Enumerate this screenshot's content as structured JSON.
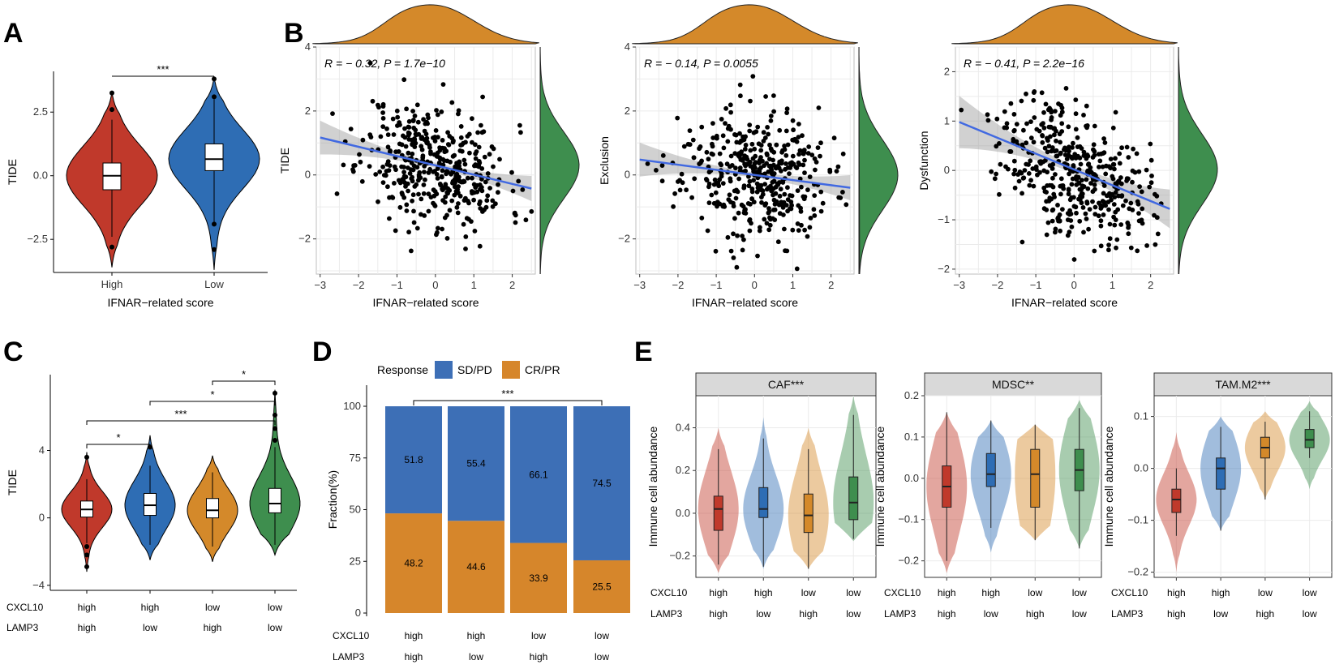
{
  "panel_labels": {
    "A": "A",
    "B": "B",
    "C": "C",
    "D": "D",
    "E": "E"
  },
  "colors": {
    "high": "#C0392B",
    "low": "#2E6DB4",
    "orange": "#D4892A",
    "green": "#3E8E4E",
    "blue_fit": "#4169E1",
    "density_top": "#D4892A",
    "density_right": "#3E8E4E",
    "sdpd": "#3D6FB6",
    "crpr": "#D6862B"
  },
  "chart_data": [
    {
      "id": "A",
      "type": "violin",
      "categories": [
        "High",
        "Low"
      ],
      "ylabel": "TIDE",
      "xlabel": "IFNAR−related score",
      "yticks": [
        -2.5,
        0.0,
        2.5
      ],
      "ytick_labels": [
        "−2.5",
        "0.0",
        "2.5"
      ],
      "ylim": [
        -3.8,
        4.1
      ],
      "groups": [
        {
          "name": "High",
          "median": 0.0,
          "q1": -0.55,
          "q3": 0.5,
          "wlo": -2.4,
          "whi": 2.2,
          "min": -3.6,
          "max": 3.3,
          "outliers": [
            -2.8,
            2.6,
            3.25
          ]
        },
        {
          "name": "Low",
          "median": 0.65,
          "q1": 0.2,
          "q3": 1.25,
          "wlo": -1.9,
          "whi": 3.0,
          "min": -3.7,
          "max": 3.9,
          "outliers": [
            -1.9,
            -2.9,
            3.1,
            3.8
          ]
        }
      ],
      "significance": [
        {
          "from": 0,
          "to": 1,
          "label": "***"
        }
      ]
    },
    {
      "id": "B1",
      "type": "scatter",
      "xlabel": "IFNAR−related score",
      "ylabel": "TIDE",
      "xlim": [
        -3.1,
        2.6
      ],
      "ylim": [
        -3.1,
        4.0
      ],
      "xticks": [
        -3,
        -2,
        -1,
        0,
        1,
        2
      ],
      "xtick_labels": [
        "−3",
        "−2",
        "−1",
        "0",
        "1",
        "2"
      ],
      "yticks": [
        -2,
        0,
        2,
        4
      ],
      "ytick_labels": [
        "−2",
        "0",
        "2",
        "4"
      ],
      "annotation": "R = − 0.32, P = 1.7e−10",
      "fit": {
        "slope": -0.29,
        "intercept": 0.3
      },
      "seed": 11,
      "n": 420,
      "noise": 0.95
    },
    {
      "id": "B2",
      "type": "scatter",
      "xlabel": "IFNAR−related score",
      "ylabel": "Exclusion",
      "xlim": [
        -3.1,
        2.6
      ],
      "ylim": [
        -3.1,
        4.0
      ],
      "xticks": [
        -3,
        -2,
        -1,
        0,
        1,
        2
      ],
      "xtick_labels": [
        "−3",
        "−2",
        "−1",
        "0",
        "1",
        "2"
      ],
      "yticks": [
        -2,
        0,
        2,
        4
      ],
      "ytick_labels": [
        "−2",
        "0",
        "2",
        "4"
      ],
      "annotation": "R = − 0.14, P = 0.0055",
      "fit": {
        "slope": -0.16,
        "intercept": 0.0
      },
      "seed": 23,
      "n": 420,
      "noise": 1.0
    },
    {
      "id": "B3",
      "type": "scatter",
      "xlabel": "IFNAR−related score",
      "ylabel": "Dysfunction",
      "xlim": [
        -3.1,
        2.6
      ],
      "ylim": [
        -2.1,
        2.5
      ],
      "xticks": [
        -3,
        -2,
        -1,
        0,
        1,
        2
      ],
      "xtick_labels": [
        "−3",
        "−2",
        "−1",
        "0",
        "1",
        "2"
      ],
      "yticks": [
        -2,
        -1,
        0,
        1,
        2
      ],
      "ytick_labels": [
        "−2",
        "−1",
        "0",
        "1",
        "2"
      ],
      "annotation": "R = − 0.41, P = 2.2e−16",
      "fit": {
        "slope": -0.32,
        "intercept": 0.02
      },
      "seed": 37,
      "n": 420,
      "noise": 0.65
    },
    {
      "id": "C",
      "type": "violin",
      "ylabel": "TIDE",
      "categories": [
        "high/high",
        "high/low",
        "low/high",
        "low/low"
      ],
      "row_labels": [
        {
          "name": "CXCL10",
          "values": [
            "high",
            "high",
            "low",
            "low"
          ]
        },
        {
          "name": "LAMP3",
          "values": [
            "high",
            "low",
            "high",
            "low"
          ]
        }
      ],
      "yticks": [
        -4,
        0,
        4
      ],
      "ytick_labels": [
        "−4",
        "0",
        "4"
      ],
      "ylim": [
        -4.3,
        8.5
      ],
      "groups": [
        {
          "median": 0.5,
          "q1": 0.05,
          "q3": 1.0,
          "wlo": -1.5,
          "whi": 2.3,
          "min": -3.2,
          "max": 3.9,
          "outliers": [
            -2.2,
            -2.9,
            -1.7,
            3.6
          ],
          "color": "#C0392B"
        },
        {
          "median": 0.75,
          "q1": 0.15,
          "q3": 1.45,
          "wlo": -1.6,
          "whi": 3.1,
          "min": -2.5,
          "max": 4.9,
          "outliers": [
            4.2
          ],
          "color": "#2E6DB4"
        },
        {
          "median": 0.45,
          "q1": 0.0,
          "q3": 1.15,
          "wlo": -1.7,
          "whi": 2.7,
          "min": -2.6,
          "max": 3.7,
          "outliers": [],
          "color": "#D4892A"
        },
        {
          "median": 0.85,
          "q1": 0.3,
          "q3": 1.75,
          "wlo": -1.6,
          "whi": 4.2,
          "min": -2.2,
          "max": 7.6,
          "outliers": [
            4.6,
            5.3,
            6.1,
            7.4
          ],
          "color": "#3E8E4E"
        }
      ],
      "significance": [
        {
          "from": 0,
          "to": 1,
          "label": "*"
        },
        {
          "from": 0,
          "to": 3,
          "label": "***"
        },
        {
          "from": 1,
          "to": 3,
          "label": "*"
        },
        {
          "from": 2,
          "to": 3,
          "label": "*"
        }
      ]
    },
    {
      "id": "D",
      "type": "stacked_bar",
      "ylabel": "Fraction(%)",
      "legend_title": "Response",
      "series": [
        {
          "name": "SD/PD",
          "values": [
            51.8,
            55.4,
            66.1,
            74.5
          ]
        },
        {
          "name": "CR/PR",
          "values": [
            48.2,
            44.6,
            33.9,
            25.5
          ]
        }
      ],
      "value_labels": {
        "SD/PD": [
          "51.8",
          "55.4",
          "66.1",
          "74.5"
        ],
        "CR/PR": [
          "48.2",
          "44.6",
          "33.9",
          "25.5"
        ]
      },
      "row_labels": [
        {
          "name": "CXCL10",
          "values": [
            "high",
            "high",
            "low",
            "low"
          ]
        },
        {
          "name": "LAMP3",
          "values": [
            "high",
            "low",
            "high",
            "low"
          ]
        }
      ],
      "yticks": [
        0,
        25,
        50,
        75,
        100
      ],
      "ytick_labels": [
        "0",
        "25",
        "50",
        "75",
        "100"
      ],
      "ylim": [
        0,
        100
      ],
      "significance": [
        {
          "from": 0,
          "to": 3,
          "label": "***"
        }
      ]
    },
    {
      "id": "E",
      "type": "violin_facets",
      "ylabel": "Immune cell abundance",
      "row_labels": [
        {
          "name": "CXCL10",
          "values": [
            "high",
            "high",
            "low",
            "low"
          ]
        },
        {
          "name": "LAMP3",
          "values": [
            "high",
            "low",
            "high",
            "low"
          ]
        }
      ],
      "colors": [
        "#C0392B",
        "#2E6DB4",
        "#D4892A",
        "#3E8E4E"
      ],
      "facets": [
        {
          "title": "CAF***",
          "ylim": [
            -0.3,
            0.55
          ],
          "yticks": [
            -0.2,
            0.0,
            0.2,
            0.4
          ],
          "ytick_labels": [
            "−0.2",
            "0.0",
            "0.2",
            "0.4"
          ],
          "groups": [
            {
              "median": 0.02,
              "q1": -0.08,
              "q3": 0.08,
              "wlo": -0.24,
              "whi": 0.3,
              "min": -0.28,
              "max": 0.4
            },
            {
              "median": 0.02,
              "q1": -0.02,
              "q3": 0.12,
              "wlo": -0.25,
              "whi": 0.35,
              "min": -0.26,
              "max": 0.45
            },
            {
              "median": -0.01,
              "q1": -0.09,
              "q3": 0.09,
              "wlo": -0.26,
              "whi": 0.3,
              "min": -0.26,
              "max": 0.4
            },
            {
              "median": 0.05,
              "q1": -0.03,
              "q3": 0.17,
              "wlo": -0.12,
              "whi": 0.46,
              "min": -0.13,
              "max": 0.55
            }
          ]
        },
        {
          "title": "MDSC**",
          "ylim": [
            -0.24,
            0.2
          ],
          "yticks": [
            -0.2,
            -0.1,
            0.0,
            0.1,
            0.2
          ],
          "ytick_labels": [
            "−0.2",
            "−0.1",
            "0.0",
            "0.1",
            "0.2"
          ],
          "groups": [
            {
              "median": -0.02,
              "q1": -0.07,
              "q3": 0.03,
              "wlo": -0.2,
              "whi": 0.16,
              "min": -0.23,
              "max": 0.16
            },
            {
              "median": 0.01,
              "q1": -0.02,
              "q3": 0.06,
              "wlo": -0.12,
              "whi": 0.14,
              "min": -0.18,
              "max": 0.14
            },
            {
              "median": 0.01,
              "q1": -0.07,
              "q3": 0.07,
              "wlo": -0.15,
              "whi": 0.13,
              "min": -0.15,
              "max": 0.13
            },
            {
              "median": 0.02,
              "q1": -0.03,
              "q3": 0.07,
              "wlo": -0.17,
              "whi": 0.17,
              "min": -0.17,
              "max": 0.19
            }
          ]
        },
        {
          "title": "TAM.M2***",
          "ylim": [
            -0.21,
            0.14
          ],
          "yticks": [
            -0.2,
            -0.1,
            0.0,
            0.1
          ],
          "ytick_labels": [
            "−0.2",
            "−0.1",
            "0.0",
            "0.1"
          ],
          "groups": [
            {
              "median": -0.06,
              "q1": -0.085,
              "q3": -0.04,
              "wlo": -0.13,
              "whi": 0.0,
              "min": -0.2,
              "max": 0.07
            },
            {
              "median": 0.0,
              "q1": -0.04,
              "q3": 0.02,
              "wlo": -0.12,
              "whi": 0.08,
              "min": -0.12,
              "max": 0.1
            },
            {
              "median": 0.04,
              "q1": 0.02,
              "q3": 0.06,
              "wlo": -0.06,
              "whi": 0.09,
              "min": -0.06,
              "max": 0.11
            },
            {
              "median": 0.055,
              "q1": 0.04,
              "q3": 0.075,
              "wlo": 0.02,
              "whi": 0.11,
              "min": -0.04,
              "max": 0.13
            }
          ]
        }
      ]
    }
  ]
}
